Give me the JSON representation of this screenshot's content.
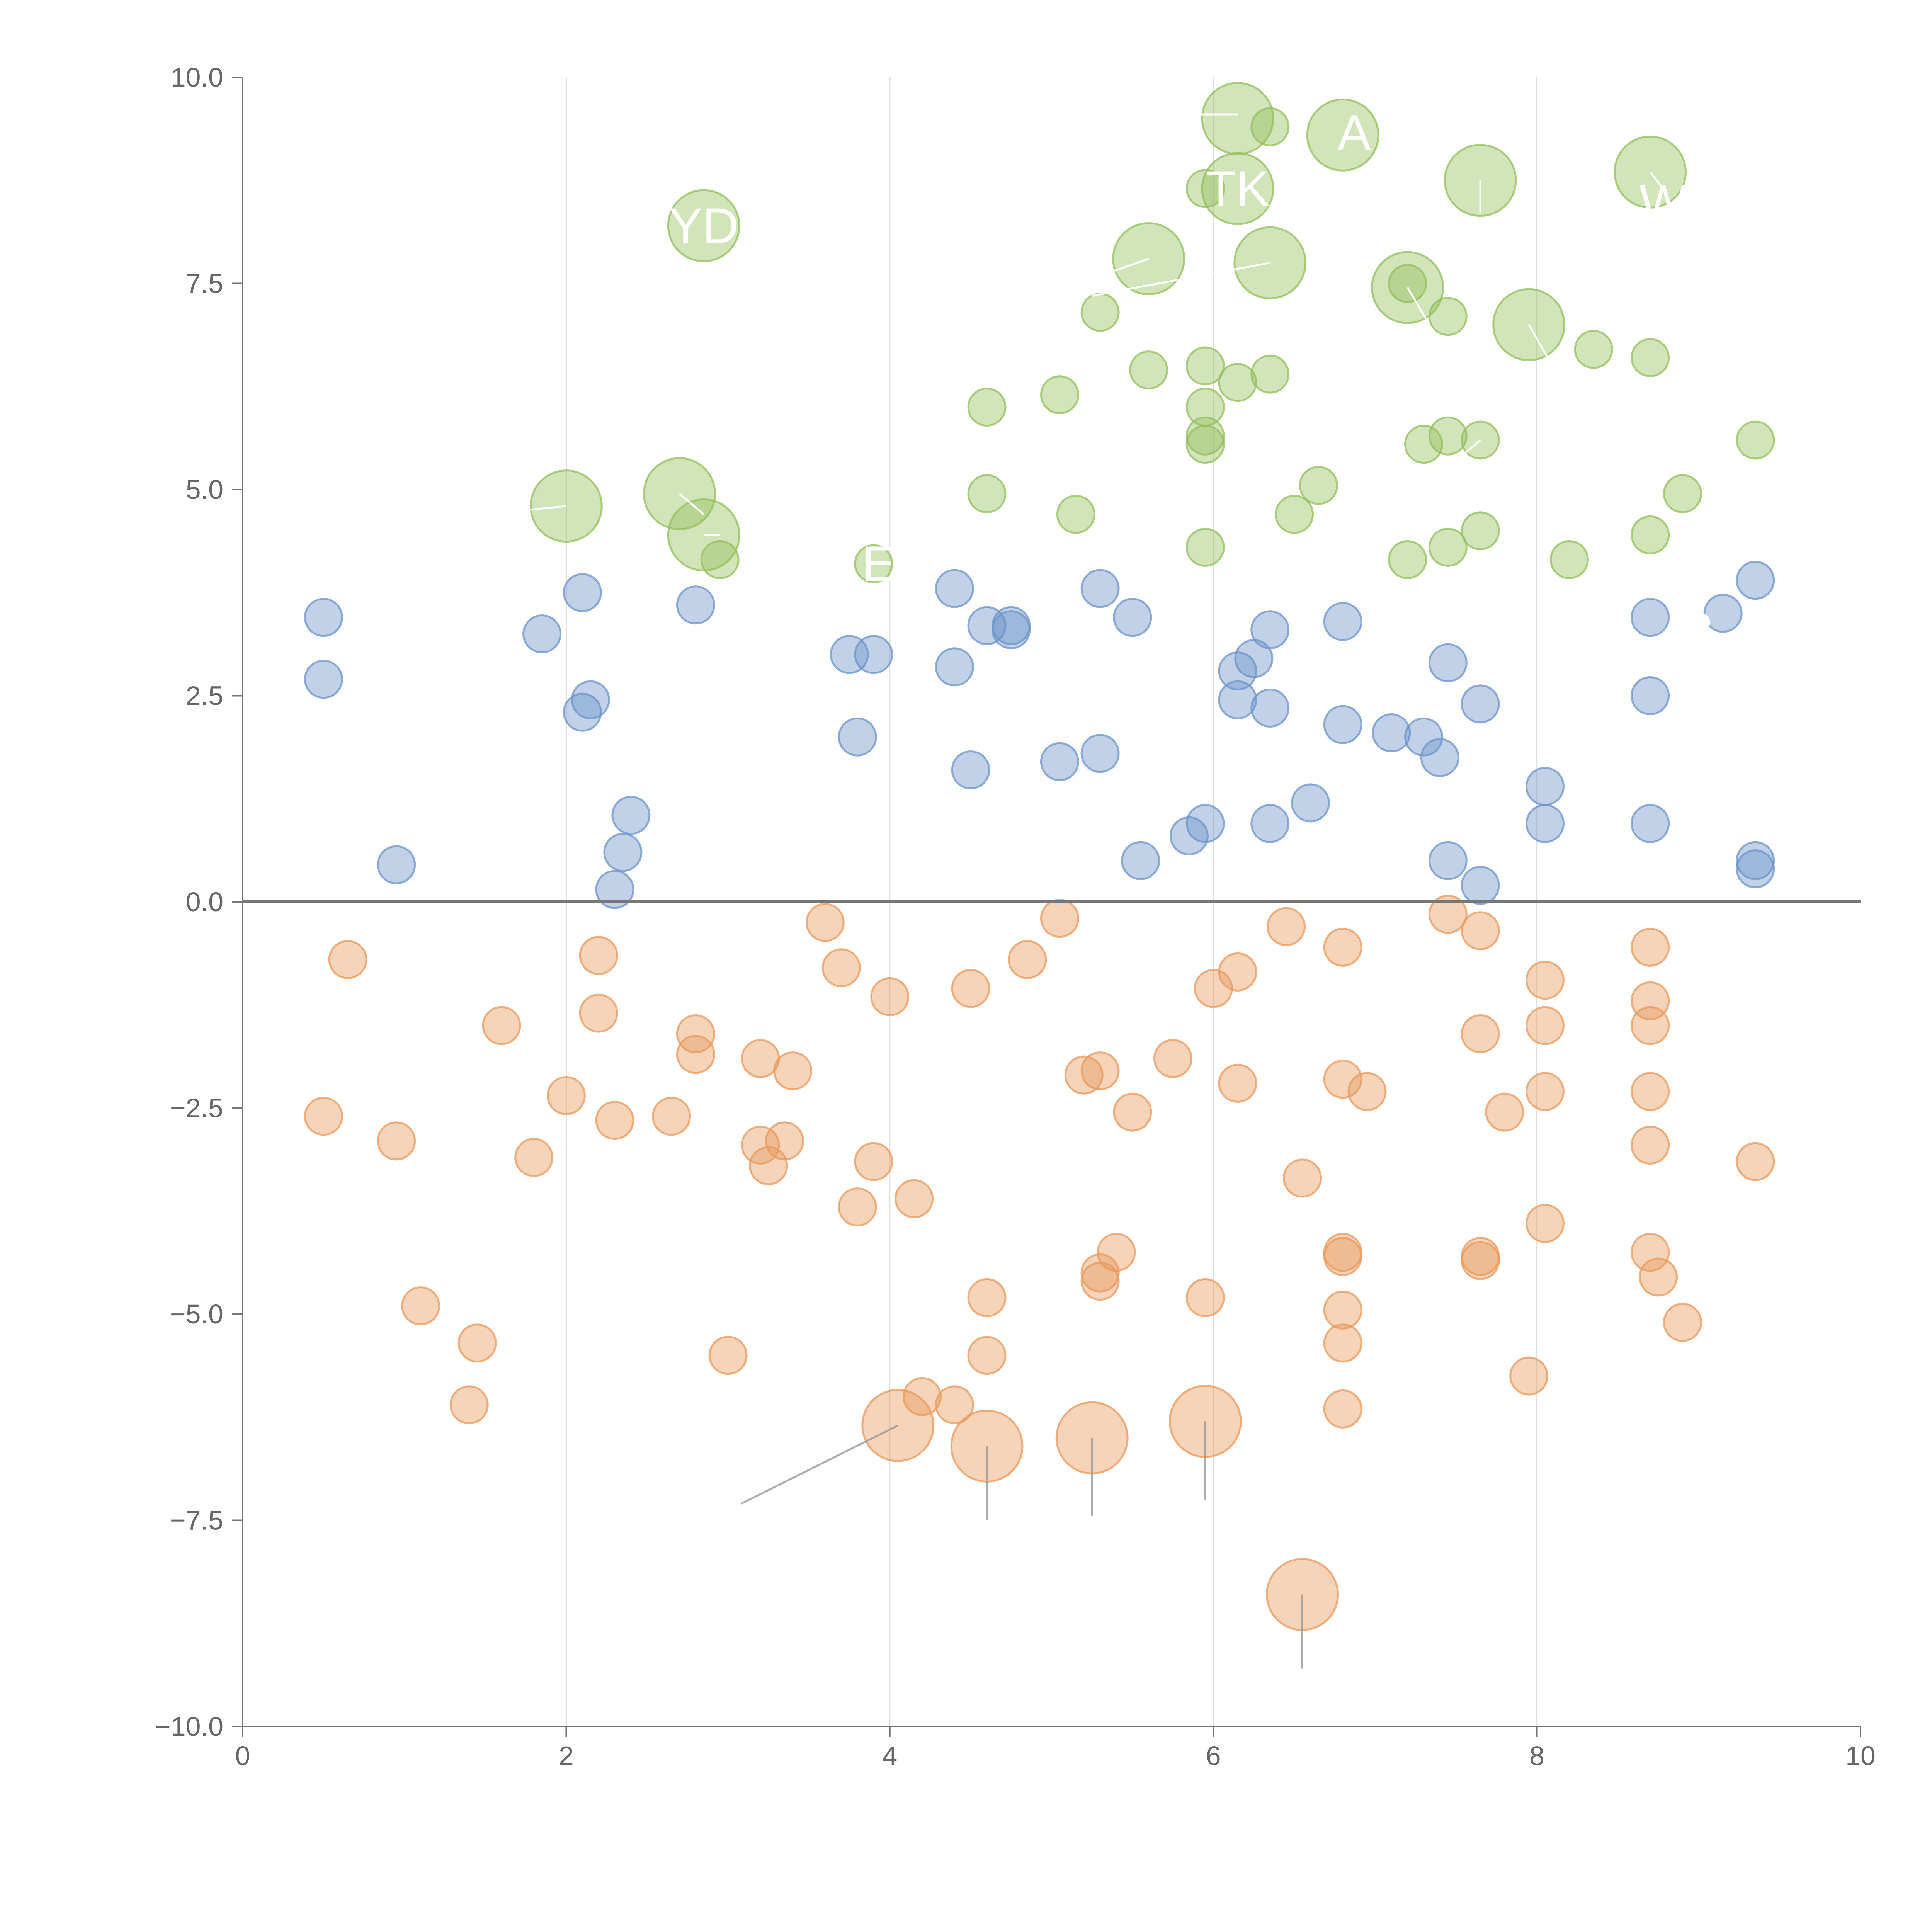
{
  "chart_data": {
    "type": "scatter",
    "title": "",
    "xlabel": "",
    "ylabel": "",
    "xlim": [
      0,
      10
    ],
    "ylim": [
      -10,
      10
    ],
    "x_ticks": [
      0,
      2,
      4,
      6,
      8,
      10
    ],
    "x_tick_labels": [
      "0",
      "2",
      "4",
      "6",
      "8",
      "10"
    ],
    "y_ticks": [
      -10,
      -7.5,
      -5,
      -2.5,
      0,
      2.5,
      5,
      7.5,
      10
    ],
    "y_tick_labels": [
      "−10.0",
      "−7.5",
      "−5.0",
      "−2.5",
      "0.0",
      "2.5",
      "5.0",
      "7.5",
      "10.0"
    ],
    "vertical_grid": true,
    "horizontal_grid": false,
    "zero_line": true,
    "colors": {
      "green": "#93bf5a",
      "blue": "#6b93c9",
      "orange": "#e8985a",
      "axis": "#777777",
      "grid": "#dddddd",
      "label": "#ffffff"
    },
    "series": [
      {
        "color_key": "green",
        "points": [
          [
            2.85,
            8.2,
            "L"
          ],
          [
            6.15,
            9.5,
            "L"
          ],
          [
            6.35,
            9.4
          ],
          [
            6.8,
            9.3,
            "L"
          ],
          [
            7.65,
            8.75,
            "L"
          ],
          [
            8.7,
            8.85,
            "L"
          ],
          [
            5.95,
            8.65
          ],
          [
            6.15,
            8.65,
            "L"
          ],
          [
            5.6,
            7.8,
            "L"
          ],
          [
            6.35,
            7.75,
            "L"
          ],
          [
            7.2,
            7.45,
            "L"
          ],
          [
            7.2,
            7.5
          ],
          [
            7.95,
            7.0,
            "L"
          ],
          [
            5.3,
            7.15
          ],
          [
            7.45,
            7.1
          ],
          [
            8.35,
            6.7
          ],
          [
            8.7,
            6.6
          ],
          [
            4.6,
            6.0
          ],
          [
            5.05,
            6.15
          ],
          [
            5.6,
            6.45
          ],
          [
            5.95,
            6.5
          ],
          [
            5.95,
            6.0
          ],
          [
            6.15,
            6.3
          ],
          [
            6.35,
            6.4
          ],
          [
            5.95,
            5.65
          ],
          [
            5.95,
            5.55
          ],
          [
            7.3,
            5.55
          ],
          [
            7.45,
            5.65
          ],
          [
            7.65,
            5.6
          ],
          [
            9.35,
            5.6
          ],
          [
            2.0,
            4.8,
            "L"
          ],
          [
            2.7,
            4.95,
            "L"
          ],
          [
            2.85,
            4.45,
            "L"
          ],
          [
            2.95,
            4.15
          ],
          [
            3.9,
            4.1
          ],
          [
            4.6,
            4.95
          ],
          [
            5.15,
            4.7
          ],
          [
            6.5,
            4.7
          ],
          [
            6.65,
            5.05
          ],
          [
            5.95,
            4.3
          ],
          [
            7.2,
            4.15
          ],
          [
            7.45,
            4.3
          ],
          [
            7.65,
            4.5
          ],
          [
            8.2,
            4.15
          ],
          [
            8.7,
            4.45
          ],
          [
            8.9,
            4.95
          ]
        ]
      },
      {
        "color_key": "blue",
        "points": [
          [
            0.5,
            3.45
          ],
          [
            0.5,
            2.7
          ],
          [
            0.95,
            0.45
          ],
          [
            1.85,
            3.25
          ],
          [
            2.1,
            3.75
          ],
          [
            2.15,
            2.45
          ],
          [
            2.1,
            2.3
          ],
          [
            2.4,
            1.05
          ],
          [
            2.35,
            0.6
          ],
          [
            2.3,
            0.15
          ],
          [
            2.8,
            3.6
          ],
          [
            3.75,
            3.0
          ],
          [
            3.9,
            3.0
          ],
          [
            3.8,
            2.0
          ],
          [
            4.4,
            3.8
          ],
          [
            4.4,
            2.85
          ],
          [
            4.6,
            3.35
          ],
          [
            4.75,
            3.35
          ],
          [
            4.75,
            3.3
          ],
          [
            4.5,
            1.6
          ],
          [
            5.05,
            1.7
          ],
          [
            5.3,
            1.8
          ],
          [
            5.3,
            3.8
          ],
          [
            5.5,
            3.45
          ],
          [
            5.55,
            0.5
          ],
          [
            5.85,
            0.8
          ],
          [
            5.95,
            0.95
          ],
          [
            6.15,
            2.8
          ],
          [
            6.15,
            2.45
          ],
          [
            6.25,
            2.95
          ],
          [
            6.35,
            3.3
          ],
          [
            6.35,
            2.35
          ],
          [
            6.35,
            0.95
          ],
          [
            6.6,
            1.2
          ],
          [
            6.8,
            3.4
          ],
          [
            6.8,
            2.15
          ],
          [
            7.1,
            2.05
          ],
          [
            7.3,
            2.0
          ],
          [
            7.4,
            1.75
          ],
          [
            7.45,
            2.9
          ],
          [
            7.45,
            0.5
          ],
          [
            7.65,
            2.4
          ],
          [
            7.65,
            0.2
          ],
          [
            8.05,
            1.4
          ],
          [
            8.05,
            0.95
          ],
          [
            8.7,
            3.45
          ],
          [
            8.7,
            2.5
          ],
          [
            8.7,
            0.95
          ],
          [
            9.15,
            3.5
          ],
          [
            9.35,
            3.9
          ],
          [
            9.35,
            0.5
          ],
          [
            9.35,
            0.4
          ]
        ]
      },
      {
        "color_key": "orange",
        "points": [
          [
            0.5,
            -2.6
          ],
          [
            0.65,
            -0.7
          ],
          [
            0.95,
            -2.9
          ],
          [
            1.1,
            -4.9
          ],
          [
            1.4,
            -6.1
          ],
          [
            1.45,
            -5.35
          ],
          [
            1.6,
            -1.5
          ],
          [
            1.8,
            -3.1
          ],
          [
            2.0,
            -2.35
          ],
          [
            2.2,
            -0.65
          ],
          [
            2.2,
            -1.35
          ],
          [
            2.3,
            -2.65
          ],
          [
            2.65,
            -2.6
          ],
          [
            2.8,
            -1.6
          ],
          [
            2.8,
            -1.85
          ],
          [
            3.0,
            -5.5
          ],
          [
            3.2,
            -1.9
          ],
          [
            3.2,
            -2.95
          ],
          [
            3.25,
            -3.2
          ],
          [
            3.35,
            -2.9
          ],
          [
            3.4,
            -2.05
          ],
          [
            3.6,
            -0.25
          ],
          [
            3.7,
            -0.8
          ],
          [
            3.8,
            -3.7
          ],
          [
            3.9,
            -3.15
          ],
          [
            4.0,
            -1.15
          ],
          [
            4.15,
            -3.6
          ],
          [
            4.2,
            -6.0
          ],
          [
            4.4,
            -6.1
          ],
          [
            4.05,
            -6.35,
            "L"
          ],
          [
            4.5,
            -1.05
          ],
          [
            4.6,
            -4.8
          ],
          [
            4.6,
            -5.5
          ],
          [
            4.6,
            -6.6,
            "L"
          ],
          [
            4.85,
            -0.7
          ],
          [
            5.05,
            -0.2
          ],
          [
            5.2,
            -2.1
          ],
          [
            5.3,
            -2.05
          ],
          [
            5.3,
            -4.5
          ],
          [
            5.3,
            -4.6
          ],
          [
            5.4,
            -4.25
          ],
          [
            5.25,
            -6.5,
            "L"
          ],
          [
            5.5,
            -2.55
          ],
          [
            5.75,
            -1.9
          ],
          [
            5.95,
            -4.8
          ],
          [
            5.95,
            -6.3,
            "L"
          ],
          [
            6.0,
            -1.05
          ],
          [
            6.15,
            -0.85
          ],
          [
            6.15,
            -2.2
          ],
          [
            6.45,
            -0.3
          ],
          [
            6.55,
            -3.35
          ],
          [
            6.55,
            -8.4,
            "L"
          ],
          [
            6.8,
            -0.55
          ],
          [
            6.8,
            -2.15
          ],
          [
            6.8,
            -4.25
          ],
          [
            6.8,
            -4.3
          ],
          [
            6.8,
            -4.95
          ],
          [
            6.8,
            -5.35
          ],
          [
            6.8,
            -6.15
          ],
          [
            6.95,
            -2.3
          ],
          [
            7.45,
            -0.15
          ],
          [
            7.65,
            -0.35
          ],
          [
            7.65,
            -1.6
          ],
          [
            7.65,
            -4.3
          ],
          [
            7.65,
            -4.35
          ],
          [
            7.8,
            -2.55
          ],
          [
            7.95,
            -5.75
          ],
          [
            8.05,
            -0.95
          ],
          [
            8.05,
            -1.5
          ],
          [
            8.05,
            -2.3
          ],
          [
            8.05,
            -3.9
          ],
          [
            8.7,
            -0.55
          ],
          [
            8.7,
            -1.2
          ],
          [
            8.7,
            -1.5
          ],
          [
            8.7,
            -2.3
          ],
          [
            8.7,
            -2.95
          ],
          [
            8.7,
            -4.25
          ],
          [
            8.75,
            -4.55
          ],
          [
            8.9,
            -5.1
          ],
          [
            9.35,
            -3.15
          ]
        ]
      }
    ],
    "labels": [
      {
        "text": "YD",
        "x": 2.85,
        "y": 8.2,
        "size": "big"
      },
      {
        "text": "A",
        "x": 6.87,
        "y": 9.33,
        "size": "big"
      },
      {
        "text": "TK",
        "x": 6.15,
        "y": 8.65,
        "size": "big"
      },
      {
        "text": "W",
        "x": 8.78,
        "y": 8.48,
        "size": "big"
      },
      {
        "text": "E",
        "x": 3.93,
        "y": 4.1,
        "size": "big"
      },
      {
        "text": "R",
        "x": 8.98,
        "y": 3.3,
        "size": "big"
      }
    ],
    "leader_lines": [
      [
        6.15,
        9.55,
        5.85,
        9.55
      ],
      [
        6.35,
        7.75,
        5.25,
        7.35
      ],
      [
        5.6,
        7.8,
        5.1,
        7.45
      ],
      [
        7.2,
        7.45,
        7.32,
        7.05
      ],
      [
        7.95,
        7.0,
        8.08,
        6.55
      ],
      [
        7.65,
        8.75,
        7.65,
        8.35
      ],
      [
        8.7,
        8.85,
        8.8,
        8.6
      ],
      [
        2.0,
        4.8,
        1.75,
        4.75
      ],
      [
        2.7,
        4.95,
        2.85,
        4.7
      ],
      [
        2.85,
        4.45,
        2.95,
        4.45
      ],
      [
        7.65,
        5.6,
        7.5,
        5.35
      ],
      [
        4.05,
        -6.35,
        3.08,
        -7.3
      ],
      [
        4.6,
        -6.6,
        4.6,
        -7.5
      ],
      [
        5.25,
        -6.5,
        5.25,
        -7.45
      ],
      [
        5.95,
        -6.3,
        5.95,
        -7.25
      ],
      [
        6.55,
        -8.4,
        6.55,
        -9.3
      ]
    ]
  }
}
